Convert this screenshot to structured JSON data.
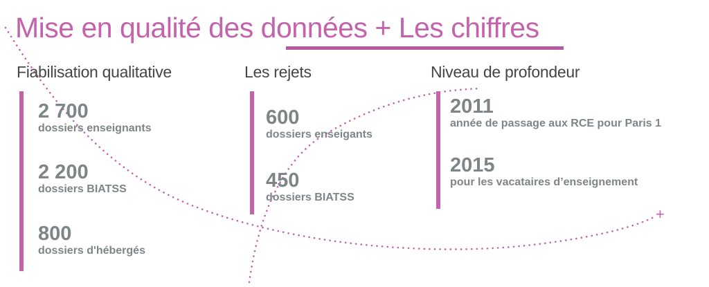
{
  "title": "Mise en qualité des données + Les chiffres",
  "columns": [
    {
      "header": "Fiabilisation qualitative",
      "items": [
        {
          "value": "2 700",
          "caption": "dossiers enseignants"
        },
        {
          "value": "2 200",
          "caption": "dossiers BIATSS"
        },
        {
          "value": "800",
          "caption": "dossiers d'hébergés"
        }
      ]
    },
    {
      "header": "Les rejets",
      "items": [
        {
          "value": "600",
          "caption": "dossiers enseigants"
        },
        {
          "value": "450",
          "caption": "dossiers BIATSS"
        }
      ]
    },
    {
      "header": "Niveau de profondeur",
      "items": [
        {
          "value": "2011",
          "caption": "année de passage aux RCE pour Paris 1"
        },
        {
          "value": "2015",
          "caption": "pour les vacataires d’enseignement"
        }
      ]
    }
  ],
  "decoration": {
    "plus_symbol": "+"
  },
  "colors": {
    "accent": "#c463ab",
    "value_text": "#7e8587",
    "header_text": "#454545"
  }
}
